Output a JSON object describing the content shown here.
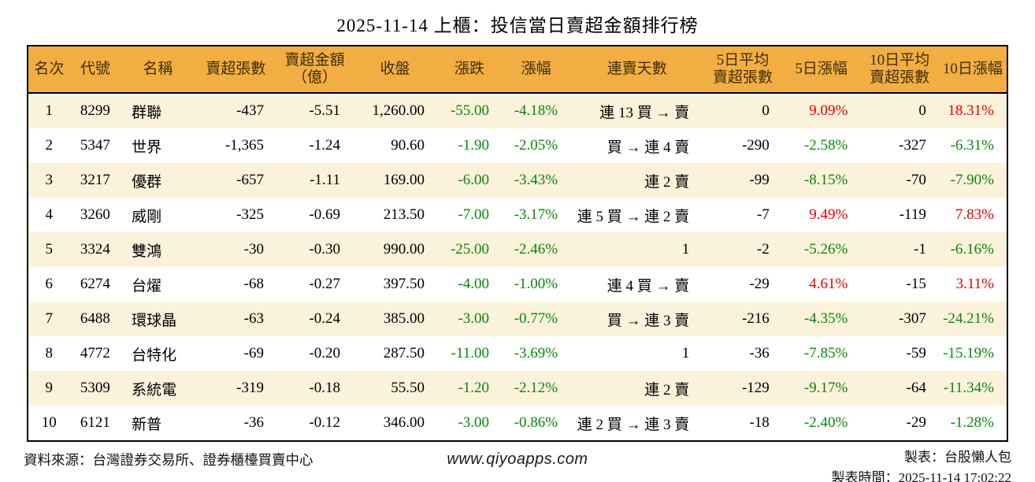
{
  "colors": {
    "header_bg": "#f2ae43",
    "row_alt_bg": "#fbf2dc",
    "up_red": "#e60000",
    "down_green": "#0a870a",
    "border": "#000000"
  },
  "chart_data": {
    "type": "table",
    "title": "2025-11-14 上櫃：投信當日賣超金額排行榜",
    "columns": [
      {
        "key": "rank",
        "label": "名次"
      },
      {
        "key": "code",
        "label": "代號"
      },
      {
        "key": "name",
        "label": "名稱"
      },
      {
        "key": "net-sell-shares",
        "label": "賣超張數"
      },
      {
        "key": "net-sell-amount",
        "label": "賣超金額\n（億）"
      },
      {
        "key": "close",
        "label": "收盤"
      },
      {
        "key": "change",
        "label": "漲跌"
      },
      {
        "key": "change-pct",
        "label": "漲幅"
      },
      {
        "key": "streak",
        "label": "連賣天數"
      },
      {
        "key": "avg5-net-sell-shares",
        "label": "5日平均\n賣超張數"
      },
      {
        "key": "change-5d",
        "label": "5日漲幅"
      },
      {
        "key": "avg10-net-sell-shares",
        "label": "10日平均\n賣超張數"
      },
      {
        "key": "change-10d",
        "label": "10日漲幅"
      }
    ],
    "rows": [
      [
        "1",
        "8299",
        "群聯",
        "-437",
        "-5.51",
        "1,260.00",
        {
          "t": "-55.00",
          "c": "green"
        },
        {
          "t": "-4.18%",
          "c": "green"
        },
        "連 13 買 → 賣",
        "0",
        {
          "t": "9.09%",
          "c": "red"
        },
        "0",
        {
          "t": "18.31%",
          "c": "red"
        }
      ],
      [
        "2",
        "5347",
        "世界",
        "-1,365",
        "-1.24",
        "90.60",
        {
          "t": "-1.90",
          "c": "green"
        },
        {
          "t": "-2.05%",
          "c": "green"
        },
        "買 → 連 4 賣",
        "-290",
        {
          "t": "-2.58%",
          "c": "green"
        },
        "-327",
        {
          "t": "-6.31%",
          "c": "green"
        }
      ],
      [
        "3",
        "3217",
        "優群",
        "-657",
        "-1.11",
        "169.00",
        {
          "t": "-6.00",
          "c": "green"
        },
        {
          "t": "-3.43%",
          "c": "green"
        },
        "連 2 賣",
        "-99",
        {
          "t": "-8.15%",
          "c": "green"
        },
        "-70",
        {
          "t": "-7.90%",
          "c": "green"
        }
      ],
      [
        "4",
        "3260",
        "威剛",
        "-325",
        "-0.69",
        "213.50",
        {
          "t": "-7.00",
          "c": "green"
        },
        {
          "t": "-3.17%",
          "c": "green"
        },
        "連 5 買 → 連 2 賣",
        "-7",
        {
          "t": "9.49%",
          "c": "red"
        },
        "-119",
        {
          "t": "7.83%",
          "c": "red"
        }
      ],
      [
        "5",
        "3324",
        "雙鴻",
        "-30",
        "-0.30",
        "990.00",
        {
          "t": "-25.00",
          "c": "green"
        },
        {
          "t": "-2.46%",
          "c": "green"
        },
        "1",
        "-2",
        {
          "t": "-5.26%",
          "c": "green"
        },
        "-1",
        {
          "t": "-6.16%",
          "c": "green"
        }
      ],
      [
        "6",
        "6274",
        "台燿",
        "-68",
        "-0.27",
        "397.50",
        {
          "t": "-4.00",
          "c": "green"
        },
        {
          "t": "-1.00%",
          "c": "green"
        },
        "連 4 買 → 賣",
        "-29",
        {
          "t": "4.61%",
          "c": "red"
        },
        "-15",
        {
          "t": "3.11%",
          "c": "red"
        }
      ],
      [
        "7",
        "6488",
        "環球晶",
        "-63",
        "-0.24",
        "385.00",
        {
          "t": "-3.00",
          "c": "green"
        },
        {
          "t": "-0.77%",
          "c": "green"
        },
        "買 → 連 3 賣",
        "-216",
        {
          "t": "-4.35%",
          "c": "green"
        },
        "-307",
        {
          "t": "-24.21%",
          "c": "green"
        }
      ],
      [
        "8",
        "4772",
        "台特化",
        "-69",
        "-0.20",
        "287.50",
        {
          "t": "-11.00",
          "c": "green"
        },
        {
          "t": "-3.69%",
          "c": "green"
        },
        "1",
        "-36",
        {
          "t": "-7.85%",
          "c": "green"
        },
        "-59",
        {
          "t": "-15.19%",
          "c": "green"
        }
      ],
      [
        "9",
        "5309",
        "系統電",
        "-319",
        "-0.18",
        "55.50",
        {
          "t": "-1.20",
          "c": "green"
        },
        {
          "t": "-2.12%",
          "c": "green"
        },
        "連 2 賣",
        "-129",
        {
          "t": "-9.17%",
          "c": "green"
        },
        "-64",
        {
          "t": "-11.34%",
          "c": "green"
        }
      ],
      [
        "10",
        "6121",
        "新普",
        "-36",
        "-0.12",
        "346.00",
        {
          "t": "-3.00",
          "c": "green"
        },
        {
          "t": "-0.86%",
          "c": "green"
        },
        "連 2 買 → 連 3 賣",
        "-18",
        {
          "t": "-2.40%",
          "c": "green"
        },
        "-29",
        {
          "t": "-1.28%",
          "c": "green"
        }
      ]
    ]
  },
  "footer": {
    "source": "資料來源：台灣證券交易所、證券櫃檯買賣中心",
    "website": "www.qiyoapps.com",
    "maker": "製表：台股懶人包",
    "timestamp": "製表時間：2025-11-14 17:02:22"
  }
}
